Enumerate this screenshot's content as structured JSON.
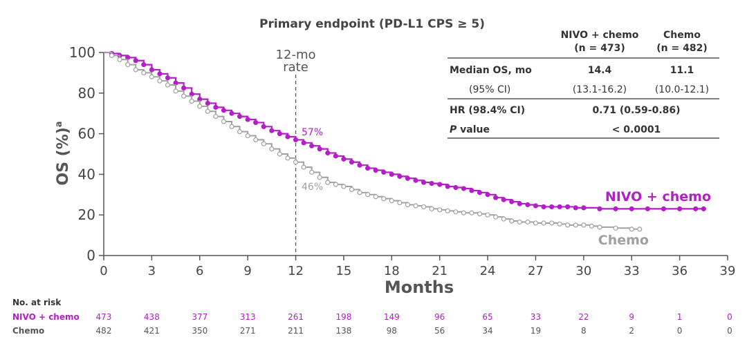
{
  "chart_data": {
    "type": "line",
    "title": "Primary endpoint (PD-L1 CPS ≥ 5)",
    "xlabel": "Months",
    "ylabel": "OS (%)",
    "ylabel_superscript": "a",
    "xlim": [
      0,
      39
    ],
    "ylim": [
      0,
      100
    ],
    "x_ticks": [
      0,
      3,
      6,
      9,
      12,
      15,
      18,
      21,
      24,
      27,
      30,
      33,
      36,
      39
    ],
    "y_ticks": [
      0,
      20,
      40,
      60,
      80,
      100
    ],
    "annotation_12mo": "12-mo\nrate",
    "reference_line_x": 12,
    "series": [
      {
        "name": "NIVO + chemo",
        "color": "#B31EC8",
        "label_12mo": "57%",
        "x": [
          0,
          0.5,
          1,
          1.5,
          2,
          2.5,
          3,
          3.5,
          4,
          4.5,
          5,
          5.5,
          6,
          6.5,
          7,
          7.5,
          8,
          8.5,
          9,
          9.5,
          10,
          10.5,
          11,
          11.5,
          12,
          12.5,
          13,
          13.5,
          14,
          14.5,
          15,
          15.5,
          16,
          16.5,
          17,
          17.5,
          18,
          18.5,
          19,
          19.5,
          20,
          20.5,
          21,
          21.5,
          22,
          22.5,
          23,
          23.5,
          24,
          24.5,
          25,
          25.5,
          26,
          26.5,
          27,
          27.5,
          28,
          28.5,
          29,
          29.5,
          30,
          31,
          32,
          33,
          34,
          35,
          36,
          37,
          37.5
        ],
        "y": [
          100,
          99.5,
          98.5,
          97.5,
          96,
          94,
          91.5,
          89.5,
          87.5,
          85,
          82.5,
          79.5,
          77,
          75,
          73,
          71.5,
          70,
          68.5,
          67,
          65.5,
          63.5,
          61.5,
          60,
          58.5,
          57,
          55.5,
          54,
          52.5,
          50.5,
          49,
          47.5,
          46,
          44.5,
          43,
          42,
          41,
          40,
          39,
          38,
          37,
          36,
          35.5,
          35,
          34,
          33.5,
          33,
          32,
          31,
          30,
          28.5,
          27.5,
          26.5,
          25.5,
          25,
          24.5,
          24,
          24,
          24,
          24,
          23.5,
          23.5,
          23,
          23,
          23,
          23,
          23,
          23,
          23,
          23
        ],
        "x_label": "NIVO + chemo"
      },
      {
        "name": "Chemo",
        "color": "#A0A0A0",
        "label_12mo": "46%",
        "x": [
          0,
          0.5,
          1,
          1.5,
          2,
          2.5,
          3,
          3.5,
          4,
          4.5,
          5,
          5.5,
          6,
          6.5,
          7,
          7.5,
          8,
          8.5,
          9,
          9.5,
          10,
          10.5,
          11,
          11.5,
          12,
          12.5,
          13,
          13.5,
          14,
          14.5,
          15,
          15.5,
          16,
          16.5,
          17,
          17.5,
          18,
          18.5,
          19,
          19.5,
          20,
          20.5,
          21,
          21.5,
          22,
          22.5,
          23,
          23.5,
          24,
          24.5,
          25,
          25.5,
          26,
          26.5,
          27,
          27.5,
          28,
          28.5,
          29,
          29.5,
          30,
          30.5,
          31,
          32,
          33,
          33.5
        ],
        "y": [
          100,
          98.5,
          96.5,
          94,
          91.5,
          90,
          88,
          86,
          84,
          81,
          78.5,
          76,
          73.5,
          71,
          68.5,
          66,
          63.5,
          61,
          59,
          57,
          55,
          52.5,
          50,
          48,
          46,
          43.5,
          41,
          38.5,
          36,
          35,
          34,
          32.5,
          31,
          30,
          29,
          28,
          27,
          26,
          25,
          24.5,
          24,
          23,
          22.5,
          22,
          21.5,
          21,
          21,
          20.5,
          20,
          19,
          18,
          17,
          16.5,
          16.5,
          16,
          16,
          16,
          15.5,
          15,
          15,
          15,
          14.5,
          14,
          13.5,
          13,
          13
        ],
        "x_label": "Chemo"
      }
    ]
  },
  "summary_table": {
    "columns": [
      "",
      "NIVO + chemo\n(n = 473)",
      "Chemo\n(n = 482)"
    ],
    "rows": [
      {
        "label": "Median OS, mo",
        "nivo": "14.4",
        "chemo": "11.1"
      },
      {
        "label": "(95% CI)",
        "nivo": "(13.1-16.2)",
        "chemo": "(10.0-12.1)"
      },
      {
        "label": "HR (98.4% CI)",
        "value": "0.71 (0.59-0.86)"
      },
      {
        "label_italic": "P",
        "label_rest": " value",
        "value": "< 0.0001"
      }
    ]
  },
  "risk_table": {
    "title": "No. at risk",
    "rows": [
      {
        "name": "NIVO + chemo",
        "color": "#B31EC8",
        "values": [
          473,
          438,
          377,
          313,
          261,
          198,
          149,
          96,
          65,
          33,
          22,
          9,
          1,
          0
        ]
      },
      {
        "name": "Chemo",
        "color": "#555555",
        "values": [
          482,
          421,
          350,
          271,
          211,
          138,
          98,
          56,
          34,
          19,
          8,
          2,
          0,
          0
        ]
      }
    ]
  }
}
